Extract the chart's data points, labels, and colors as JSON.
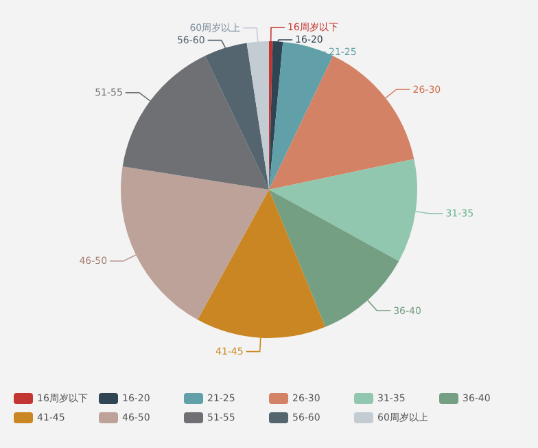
{
  "chart_data": {
    "type": "pie",
    "categories": [
      "16周岁以下",
      "16-20",
      "21-25",
      "26-30",
      "31-35",
      "36-40",
      "41-45",
      "46-50",
      "51-55",
      "56-60",
      "60周岁以上"
    ],
    "values": [
      0.4,
      1.1,
      5.6,
      14.6,
      11.3,
      10.8,
      14.2,
      19.5,
      15.4,
      4.7,
      2.4
    ],
    "colors": [
      "#c23531",
      "#2f4554",
      "#61a0a8",
      "#d48265",
      "#91c7ae",
      "#749f83",
      "#ca8622",
      "#bda29a",
      "#6e7074",
      "#546570",
      "#c4ccd3"
    ],
    "legend": "bottom"
  }
}
